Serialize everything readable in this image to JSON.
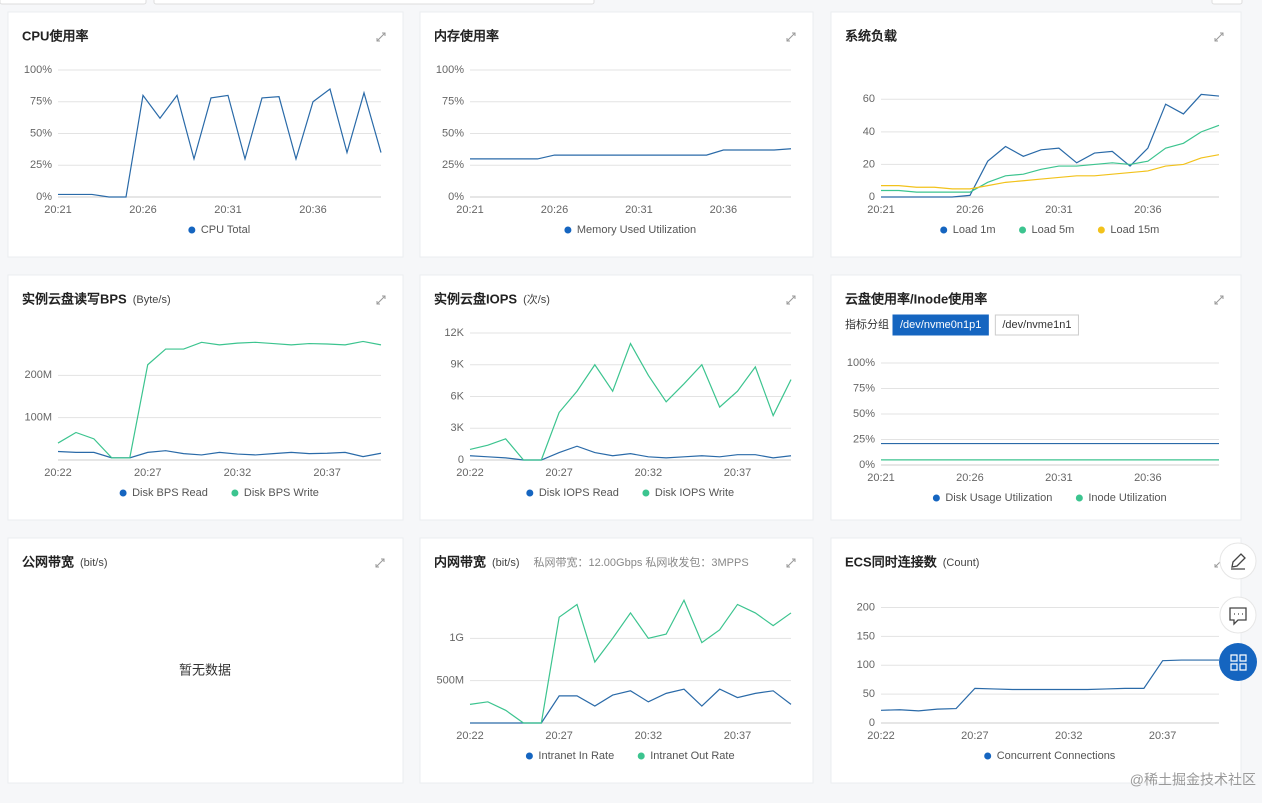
{
  "chart_data": [
    {
      "type": "line",
      "title": "CPU使用率",
      "categories": [
        "20:21",
        null,
        null,
        null,
        null,
        "20:26",
        null,
        null,
        null,
        null,
        "20:31",
        null,
        null,
        null,
        null,
        "20:36",
        null,
        null,
        null,
        null
      ],
      "series": [
        {
          "name": "CPU Total",
          "color": "#2a6aa8",
          "values": [
            2,
            2,
            2,
            0,
            0,
            80,
            62,
            80,
            30,
            78,
            80,
            30,
            78,
            79,
            30,
            75,
            85,
            35,
            82,
            35
          ]
        }
      ],
      "ylim": [
        0,
        100
      ],
      "yticks": [
        {
          "value": 0,
          "label": "0%"
        },
        {
          "value": 25,
          "label": "25%"
        },
        {
          "value": 50,
          "label": "50%"
        },
        {
          "value": 75,
          "label": "75%"
        },
        {
          "value": 100,
          "label": "100%"
        }
      ],
      "grid": true
    },
    {
      "type": "line",
      "title": "内存使用率",
      "categories": [
        "20:21",
        null,
        null,
        null,
        null,
        "20:26",
        null,
        null,
        null,
        null,
        "20:31",
        null,
        null,
        null,
        null,
        "20:36",
        null,
        null,
        null,
        null
      ],
      "series": [
        {
          "name": "Memory Used Utilization",
          "color": "#2a6aa8",
          "values": [
            30,
            30,
            30,
            30,
            30,
            33,
            33,
            33,
            33,
            33,
            33,
            33,
            33,
            33,
            33,
            37,
            37,
            37,
            37,
            38
          ]
        }
      ],
      "ylim": [
        0,
        100
      ],
      "yticks": [
        {
          "value": 0,
          "label": "0%"
        },
        {
          "value": 25,
          "label": "25%"
        },
        {
          "value": 50,
          "label": "50%"
        },
        {
          "value": 75,
          "label": "75%"
        },
        {
          "value": 100,
          "label": "100%"
        }
      ],
      "grid": true
    },
    {
      "type": "line",
      "title": "系统负载",
      "categories": [
        "20:21",
        null,
        null,
        null,
        null,
        "20:26",
        null,
        null,
        null,
        null,
        "20:31",
        null,
        null,
        null,
        null,
        "20:36",
        null,
        null,
        null,
        null
      ],
      "series": [
        {
          "name": "Load 1m",
          "color": "#2a6aa8",
          "values": [
            0,
            0,
            0,
            0,
            0,
            1,
            22,
            31,
            25,
            29,
            30,
            21,
            27,
            28,
            19,
            30,
            57,
            51,
            63,
            62
          ]
        },
        {
          "name": "Load 5m",
          "color": "#3cc48f",
          "values": [
            4,
            4,
            3,
            3,
            3,
            3,
            9,
            13,
            14,
            17,
            19,
            19,
            20,
            21,
            20,
            22,
            30,
            33,
            40,
            44
          ]
        },
        {
          "name": "Load 15m",
          "color": "#f2c21b",
          "values": [
            7,
            7,
            6,
            6,
            5,
            5,
            7,
            9,
            10,
            11,
            12,
            13,
            13,
            14,
            15,
            16,
            19,
            20,
            24,
            26
          ]
        }
      ],
      "ylim": [
        0,
        78
      ],
      "yticks": [
        0,
        20,
        40,
        60
      ],
      "grid": true
    },
    {
      "type": "line",
      "title": "实例云盘读写BPS",
      "unit": "(Byte/s)",
      "categories": [
        "20:22",
        null,
        null,
        null,
        null,
        "20:27",
        null,
        null,
        null,
        null,
        "20:32",
        null,
        null,
        null,
        null,
        "20:37",
        null,
        null,
        null
      ],
      "series": [
        {
          "name": "Disk BPS Read",
          "color": "#2a6aa8",
          "values": [
            20000000,
            18000000,
            18000000,
            5000000,
            5000000,
            18000000,
            22000000,
            15000000,
            12000000,
            18000000,
            14000000,
            12000000,
            15000000,
            18000000,
            15000000,
            16000000,
            18000000,
            8000000,
            16000000
          ]
        },
        {
          "name": "Disk BPS Write",
          "color": "#3cc48f",
          "values": [
            40000000,
            65000000,
            50000000,
            5000000,
            5000000,
            225000000,
            262000000,
            262000000,
            278000000,
            272000000,
            276000000,
            278000000,
            275000000,
            272000000,
            275000000,
            274000000,
            272000000,
            280000000,
            272000000
          ]
        }
      ],
      "ylim": [
        0,
        300000000
      ],
      "yticks": [
        {
          "value": 100000000,
          "label": "100M"
        },
        {
          "value": 200000000,
          "label": "200M"
        }
      ],
      "grid": true
    },
    {
      "type": "line",
      "title": "实例云盘IOPS",
      "unit": "(次/s)",
      "categories": [
        "20:22",
        null,
        null,
        null,
        null,
        "20:27",
        null,
        null,
        null,
        null,
        "20:32",
        null,
        null,
        null,
        null,
        "20:37",
        null,
        null,
        null
      ],
      "series": [
        {
          "name": "Disk IOPS Read",
          "color": "#2a6aa8",
          "values": [
            400,
            300,
            200,
            0,
            0,
            700,
            1300,
            700,
            400,
            600,
            300,
            200,
            300,
            400,
            300,
            500,
            500,
            200,
            400
          ]
        },
        {
          "name": "Disk IOPS Write",
          "color": "#3cc48f",
          "values": [
            1000,
            1400,
            2000,
            0,
            0,
            4500,
            6500,
            9000,
            6500,
            11000,
            8000,
            5500,
            7200,
            9000,
            5000,
            6500,
            8800,
            4200,
            7600
          ]
        }
      ],
      "ylim": [
        0,
        12000
      ],
      "yticks": [
        0,
        {
          "value": 3000,
          "label": "3K"
        },
        {
          "value": 6000,
          "label": "6K"
        },
        {
          "value": 9000,
          "label": "9K"
        },
        {
          "value": 12000,
          "label": "12K"
        }
      ],
      "grid": true
    },
    {
      "type": "line",
      "title": "云盘使用率/Inode使用率",
      "tabs_label": "指标分组",
      "tabs": [
        "/dev/nvme0n1p1",
        "/dev/nvme1n1"
      ],
      "categories": [
        "20:21",
        null,
        null,
        null,
        null,
        "20:26",
        null,
        null,
        null,
        null,
        "20:31",
        null,
        null,
        null,
        null,
        "20:36",
        null,
        null,
        null,
        null
      ],
      "series": [
        {
          "name": "Disk Usage Utilization",
          "color": "#2a6aa8",
          "values": [
            21,
            21,
            21,
            21,
            21,
            21,
            21,
            21,
            21,
            21,
            21,
            21,
            21,
            21,
            21,
            21,
            21,
            21,
            21,
            21
          ]
        },
        {
          "name": "Inode Utilization",
          "color": "#3cc48f",
          "values": [
            5,
            5,
            5,
            5,
            5,
            5,
            5,
            5,
            5,
            5,
            5,
            5,
            5,
            5,
            5,
            5,
            5,
            5,
            5,
            5
          ]
        }
      ],
      "ylim": [
        0,
        100
      ],
      "yticks": [
        {
          "value": 0,
          "label": "0%"
        },
        {
          "value": 25,
          "label": "25%"
        },
        {
          "value": 50,
          "label": "50%"
        },
        {
          "value": 75,
          "label": "75%"
        },
        {
          "value": 100,
          "label": "100%"
        }
      ],
      "grid": true
    },
    {
      "type": "line",
      "title": "内网带宽",
      "unit": "(bit/s)",
      "note": "私网带宽：12.00Gbps 私网收发包：3MPPS",
      "categories": [
        "20:22",
        null,
        null,
        null,
        null,
        "20:27",
        null,
        null,
        null,
        null,
        "20:32",
        null,
        null,
        null,
        null,
        "20:37",
        null,
        null,
        null
      ],
      "series": [
        {
          "name": "Intranet In Rate",
          "color": "#2a6aa8",
          "values": [
            0,
            0,
            0,
            0,
            0,
            320000000,
            320000000,
            200000000,
            330000000,
            380000000,
            250000000,
            350000000,
            400000000,
            200000000,
            400000000,
            300000000,
            350000000,
            380000000,
            220000000
          ]
        },
        {
          "name": "Intranet Out Rate",
          "color": "#3cc48f",
          "values": [
            220000000,
            250000000,
            150000000,
            0,
            0,
            1250000000,
            1400000000,
            720000000,
            1000000000,
            1300000000,
            1000000000,
            1050000000,
            1450000000,
            950000000,
            1100000000,
            1400000000,
            1300000000,
            1150000000,
            1300000000
          ]
        }
      ],
      "ylim": [
        0,
        1500000000
      ],
      "yticks": [
        {
          "value": 500000000,
          "label": "500M"
        },
        {
          "value": 1000000000,
          "label": "1G"
        }
      ],
      "grid": true
    },
    {
      "type": "line",
      "title": "ECS同时连接数",
      "unit": "(Count)",
      "categories": [
        "20:22",
        null,
        null,
        null,
        null,
        "20:27",
        null,
        null,
        null,
        null,
        "20:32",
        null,
        null,
        null,
        null,
        "20:37",
        null,
        null,
        null
      ],
      "series": [
        {
          "name": "Concurrent Connections",
          "color": "#2a6aa8",
          "values": [
            22,
            23,
            21,
            24,
            25,
            60,
            59,
            58,
            58,
            58,
            58,
            58,
            59,
            60,
            60,
            108,
            109,
            109,
            109
          ]
        }
      ],
      "ylim": [
        0,
        220
      ],
      "yticks": [
        0,
        50,
        100,
        150,
        200
      ],
      "grid": true
    }
  ],
  "empty_panel": {
    "title": "公网带宽",
    "unit": "(bit/s)",
    "message": "暂无数据"
  },
  "watermark": "@稀土掘金技术社区"
}
